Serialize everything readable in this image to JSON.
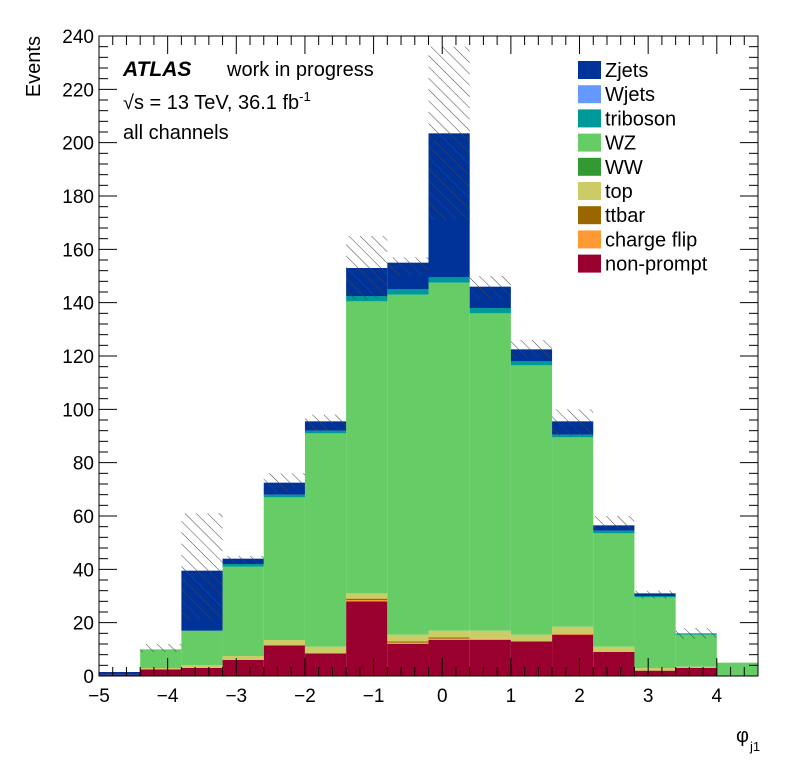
{
  "chart_data": {
    "type": "bar",
    "stacked": true,
    "ylabel": "Events",
    "xlabel_main": "φ",
    "xlabel_sub": "j1",
    "xlim": [
      -5,
      4.6
    ],
    "ylim": [
      0,
      240
    ],
    "x_ticks": [
      -5,
      -4,
      -3,
      -2,
      -1,
      0,
      1,
      2,
      3,
      4
    ],
    "x_tick_labels": [
      "−5",
      "−4",
      "−3",
      "−2",
      "−1",
      "0",
      "1",
      "2",
      "3",
      "4"
    ],
    "y_ticks": [
      0,
      20,
      40,
      60,
      80,
      100,
      120,
      140,
      160,
      180,
      200,
      220,
      240
    ],
    "y_tick_labels": [
      "0",
      "20",
      "40",
      "60",
      "80",
      "100",
      "120",
      "140",
      "160",
      "180",
      "200",
      "220",
      "240"
    ],
    "bin_edges": [
      -5,
      -4.4,
      -3.8,
      -3.2,
      -2.6,
      -2.0,
      -1.4,
      -0.8,
      -0.2,
      0.4,
      1.0,
      1.6,
      2.2,
      2.8,
      3.4,
      4.0,
      4.6
    ],
    "legend_position": "top-right",
    "series": [
      {
        "name": "non-prompt",
        "color": "#99002e",
        "values": [
          0.5,
          2.5,
          3,
          6,
          11.5,
          8.5,
          28,
          12,
          13.5,
          13.5,
          13,
          15.5,
          9,
          2,
          3,
          0
        ]
      },
      {
        "name": "charge flip",
        "color": "#ff9933",
        "values": [
          0,
          0,
          0,
          0,
          0,
          0,
          0.5,
          0.5,
          0.5,
          0.5,
          0,
          0.5,
          0,
          0,
          0,
          0
        ]
      },
      {
        "name": "ttbar",
        "color": "#996600",
        "values": [
          0,
          0,
          0,
          0,
          0,
          0,
          0.5,
          0.5,
          0.5,
          0,
          0,
          0,
          0,
          0,
          0,
          0
        ]
      },
      {
        "name": "top",
        "color": "#cccc66",
        "values": [
          0,
          0.5,
          1,
          1.5,
          2,
          2.5,
          2,
          2.5,
          2.5,
          3,
          2.5,
          2.5,
          2,
          1,
          0.5,
          0
        ]
      },
      {
        "name": "WW",
        "color": "#339933",
        "values": [
          0,
          0,
          0,
          0,
          0,
          0,
          0,
          0,
          0,
          0,
          0,
          0,
          0,
          0,
          0,
          0
        ]
      },
      {
        "name": "WZ",
        "color": "#66cc66",
        "values": [
          0,
          7,
          13,
          33.5,
          53.5,
          80,
          109.5,
          127.5,
          130.5,
          119,
          101,
          71,
          42.5,
          26.5,
          12,
          5
        ]
      },
      {
        "name": "triboson",
        "color": "#009999",
        "values": [
          0,
          0,
          0,
          1,
          1,
          1,
          2,
          2,
          2,
          2,
          1.5,
          1,
          1,
          0.5,
          0.5,
          0
        ]
      },
      {
        "name": "Wjets",
        "color": "#6699ff",
        "values": [
          0,
          0,
          0,
          0,
          0,
          0,
          0,
          0,
          0,
          0,
          0,
          0,
          0,
          0,
          0,
          0
        ]
      },
      {
        "name": "Zjets",
        "color": "#003399",
        "values": [
          1,
          0,
          22.5,
          2,
          4.5,
          3.5,
          10.5,
          10,
          54,
          8,
          4.5,
          5,
          2,
          1,
          0,
          0
        ]
      }
    ],
    "uncertainty": {
      "hatch_color": "#444444",
      "upper": [
        1.5,
        12,
        61,
        45,
        76,
        98,
        165,
        157,
        236,
        150,
        126,
        100,
        60,
        32,
        18,
        5
      ],
      "lower": [
        0.5,
        9,
        21,
        42,
        69,
        92,
        141,
        150,
        171,
        141,
        119,
        90,
        55,
        29,
        14,
        5
      ]
    },
    "annotations": {
      "experiment": "ATLAS",
      "status": "work in progress",
      "energy_sqrt": "√s",
      "energy_text": " = 13 TeV, 36.1 fb",
      "energy_sup": "-1",
      "channel": "all channels"
    },
    "legend": [
      {
        "name": "Zjets",
        "color": "#003399"
      },
      {
        "name": "Wjets",
        "color": "#6699ff"
      },
      {
        "name": "triboson",
        "color": "#009999"
      },
      {
        "name": "WZ",
        "color": "#66cc66"
      },
      {
        "name": "WW",
        "color": "#339933"
      },
      {
        "name": "top",
        "color": "#cccc66"
      },
      {
        "name": "ttbar",
        "color": "#996600"
      },
      {
        "name": "charge flip",
        "color": "#ff9933"
      },
      {
        "name": "non-prompt",
        "color": "#99002e"
      }
    ]
  }
}
